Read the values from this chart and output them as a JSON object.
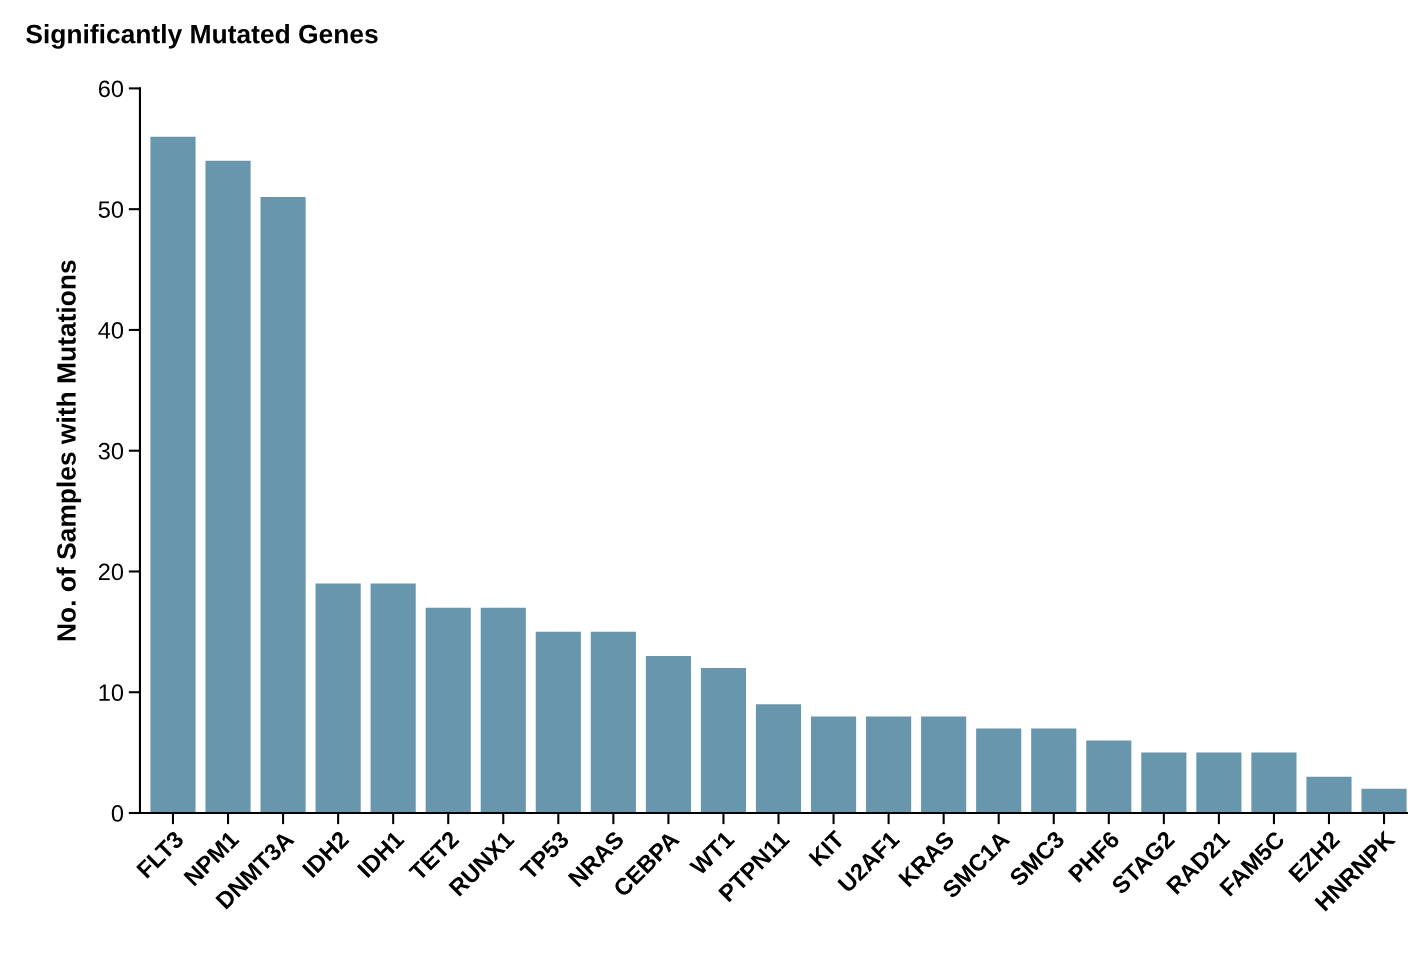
{
  "chart_data": {
    "type": "bar",
    "title": "Significantly Mutated Genes",
    "ylabel": "No. of Samples with Mutations",
    "categories": [
      "FLT3",
      "NPM1",
      "DNMT3A",
      "IDH2",
      "IDH1",
      "TET2",
      "RUNX1",
      "TP53",
      "NRAS",
      "CEBPA",
      "WT1",
      "PTPN11",
      "KIT",
      "U2AF1",
      "KRAS",
      "SMC1A",
      "SMC3",
      "PHF6",
      "STAG2",
      "RAD21",
      "FAM5C",
      "EZH2",
      "HNRNPK"
    ],
    "values": [
      56,
      54,
      51,
      19,
      19,
      17,
      17,
      15,
      15,
      13,
      12,
      9,
      8,
      8,
      8,
      7,
      7,
      6,
      5,
      5,
      5,
      3,
      2
    ],
    "color": "#6896ad",
    "ylim": [
      0,
      60
    ],
    "yticks": [
      0,
      10,
      20,
      30,
      40,
      50,
      60
    ],
    "grid": false,
    "legend": false
  }
}
